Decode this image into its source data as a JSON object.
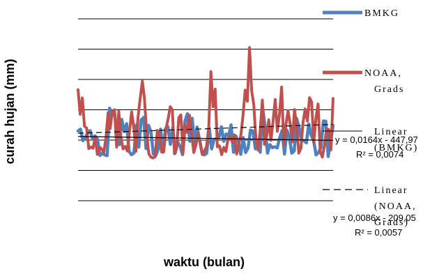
{
  "chart_data": {
    "type": "line",
    "xlabel": "waktu (bulan)",
    "ylabel": "curah hujan (mm)",
    "ylim": [
      0,
      600
    ],
    "grid": true,
    "legend_position": "right",
    "series": [
      {
        "name": "BMKG",
        "color": "#4F81BD",
        "values": [
          230,
          236,
          198,
          208,
          226,
          231,
          203,
          214,
          203,
          149,
          157,
          151,
          149,
          305,
          281,
          292,
          219,
          185,
          268,
          228,
          254,
          163,
          152,
          157,
          250,
          177,
          266,
          275,
          172,
          249,
          227,
          154,
          149,
          170,
          236,
          160,
          238,
          244,
          186,
          241,
          157,
          194,
          180,
          152,
          262,
          287,
          196,
          272,
          184,
          243,
          202,
          159,
          151,
          157,
          241,
          171,
          202,
          205,
          209,
          244,
          196,
          220,
          214,
          250,
          160,
          213,
          194,
          153,
          208,
          159,
          174,
          233,
          229,
          171,
          193,
          160,
          308,
          243,
          157,
          185,
          175,
          178,
          174,
          207,
          231,
          154,
          233,
          208,
          157,
          164,
          271,
          242,
          197,
          199,
          191,
          253,
          216,
          198,
          151,
          159,
          176,
          263,
          262,
          146,
          196,
          248
        ]
      },
      {
        "name": "NOAA, Grads",
        "color": "#C0504D",
        "values": [
          366,
          285,
          339,
          246,
          240,
          172,
          177,
          173,
          209,
          153,
          177,
          171,
          159,
          206,
          290,
          238,
          295,
          300,
          177,
          295,
          210,
          171,
          179,
          164,
          227,
          293,
          242,
          163,
          276,
          338,
          394,
          337,
          226,
          155,
          144,
          141,
          145,
          232,
          220,
          161,
          162,
          236,
          269,
          310,
          300,
          155,
          173,
          274,
          283,
          158,
          250,
          225,
          282,
          220,
          159,
          184,
          221,
          192,
          152,
          164,
          180,
          244,
          426,
          310,
          368,
          178,
          181,
          152,
          176,
          162,
          206,
          212,
          193,
          217,
          154,
          188,
          216,
          283,
          365,
          328,
          505,
          364,
          317,
          203,
          167,
          232,
          332,
          186,
          214,
          267,
          199,
          263,
          334,
          229,
          285,
          375,
          184,
          251,
          297,
          252,
          194,
          301,
          250,
          157,
          173,
          259,
          303,
          263,
          340,
          326,
          192,
          273,
          319,
          162,
          144,
          184,
          237,
          235,
          168,
          337
        ]
      }
    ],
    "trendlines": [
      {
        "name": "Linear (BMKG)",
        "equation": "y = 0,0164x - 447,97",
        "r2": "R² = 0,0074",
        "style": "solid",
        "color": "#000000"
      },
      {
        "name": "Linear (NOAA, Grads)",
        "equation": "y = 0,0086x - 209,05",
        "r2": "R² = 0,0057",
        "style": "dashed",
        "color": "#000000"
      }
    ],
    "legend": [
      {
        "label": "BMKG",
        "color": "#4F81BD",
        "style": "line"
      },
      {
        "label_line1": "NOAA,",
        "label_line2": "Grads",
        "color": "#C0504D",
        "style": "line"
      },
      {
        "label_line1": "Linear",
        "label_line2": "(BMKG)",
        "color": "#000000",
        "style": "solid-thin"
      },
      {
        "label_line1": "Linear",
        "label_line2": "(NOAA,",
        "label_line3": "Grads)",
        "color": "#000000",
        "style": "dashed"
      }
    ]
  }
}
